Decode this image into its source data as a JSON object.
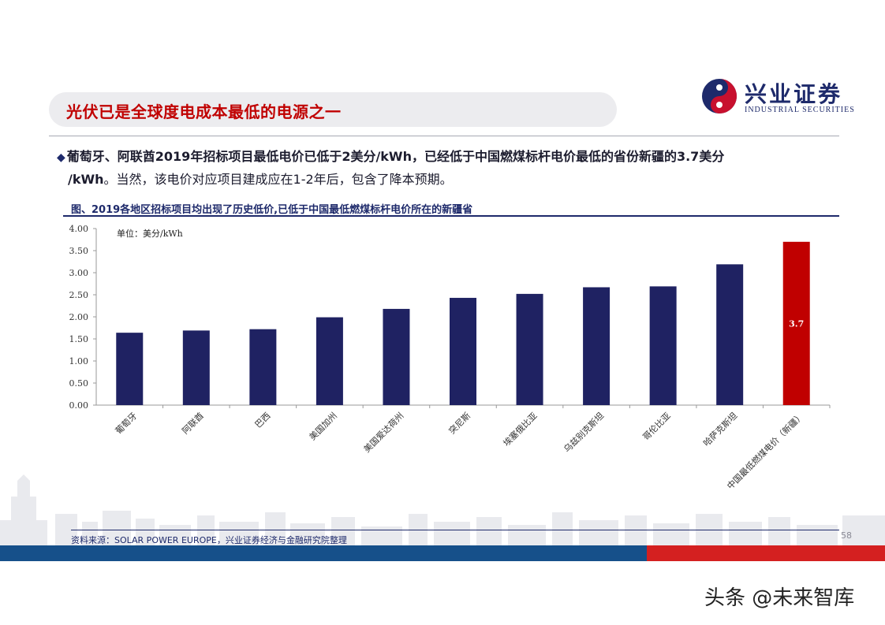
{
  "header": {
    "title": "光伏已是全球度电成本最低的电源之一",
    "logo_cn": "兴业证券",
    "logo_en": "INDUSTRIAL SECURITIES"
  },
  "bullet": {
    "marker": "◆",
    "line1": "葡萄牙、阿联酋2019年招标项目最低电价已低于2美分/kWh，已经低于中国燃煤标杆电价最低的省份新疆的3.7美分",
    "line2_bold": "/kWh",
    "line2_rest": "。当然，该电价对应项目建成应在1-2年后，包含了降本预期。"
  },
  "figure_title": "图、2019各地区招标项目均出现了历史低价,已低于中国最低燃煤标杆电价所在的新疆省",
  "chart_data": {
    "type": "bar",
    "unit_label": "单位：美分/kWh",
    "categories": [
      "葡萄牙",
      "阿联酋",
      "巴西",
      "美国加州",
      "美国爱达荷州",
      "突尼斯",
      "埃塞俄比亚",
      "乌兹别克斯坦",
      "哥伦比亚",
      "哈萨克斯坦",
      "中国最低燃煤电价（新疆）"
    ],
    "values": [
      1.64,
      1.69,
      1.72,
      1.99,
      2.18,
      2.43,
      2.52,
      2.67,
      2.69,
      3.19,
      3.7
    ],
    "highlight_index": 10,
    "data_labels": {
      "10": "3.7"
    },
    "yticks": [
      "0.00",
      "0.50",
      "1.00",
      "1.50",
      "2.00",
      "2.50",
      "3.00",
      "3.50",
      "4.00"
    ],
    "ylim": [
      0,
      4
    ],
    "colors": {
      "bar": "#1f2262",
      "highlight": "#c00000",
      "label": "#ffffff"
    },
    "grid": false,
    "legend": "none"
  },
  "footer": {
    "source": "资料来源：SOLAR POWER EUROPE，兴业证券经济与金融研究院整理",
    "page": "58"
  },
  "watermark": "头条 @未来智库"
}
